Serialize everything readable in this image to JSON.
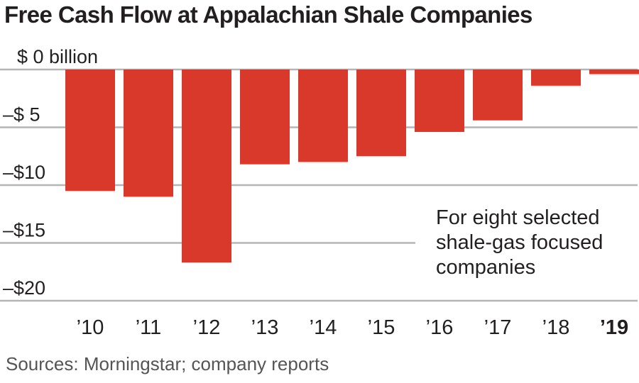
{
  "title": "Free Cash Flow at Appalachian Shale Companies",
  "source": "Sources: Morningstar; company reports",
  "chart_data": {
    "type": "bar",
    "categories": [
      "’10",
      "’11",
      "’12",
      "’13",
      "’14",
      "’15",
      "’16",
      "’17",
      "’18",
      "’19"
    ],
    "bold_category": "’19",
    "values": [
      -10.5,
      -11.0,
      -16.7,
      -8.2,
      -8.0,
      -7.5,
      -5.4,
      -4.4,
      -1.4,
      -0.4
    ],
    "yticks": [
      {
        "value": 0,
        "label": "$  0 billion"
      },
      {
        "value": -5,
        "label": "–$  5"
      },
      {
        "value": -10,
        "label": "–$10"
      },
      {
        "value": -15,
        "label": "–$15"
      },
      {
        "value": -20,
        "label": "–$20"
      }
    ],
    "ylim": [
      -20,
      0
    ],
    "grid": true,
    "bar_color": "#d9392b",
    "annotation": [
      "For eight selected",
      "shale-gas focused",
      "companies"
    ]
  }
}
